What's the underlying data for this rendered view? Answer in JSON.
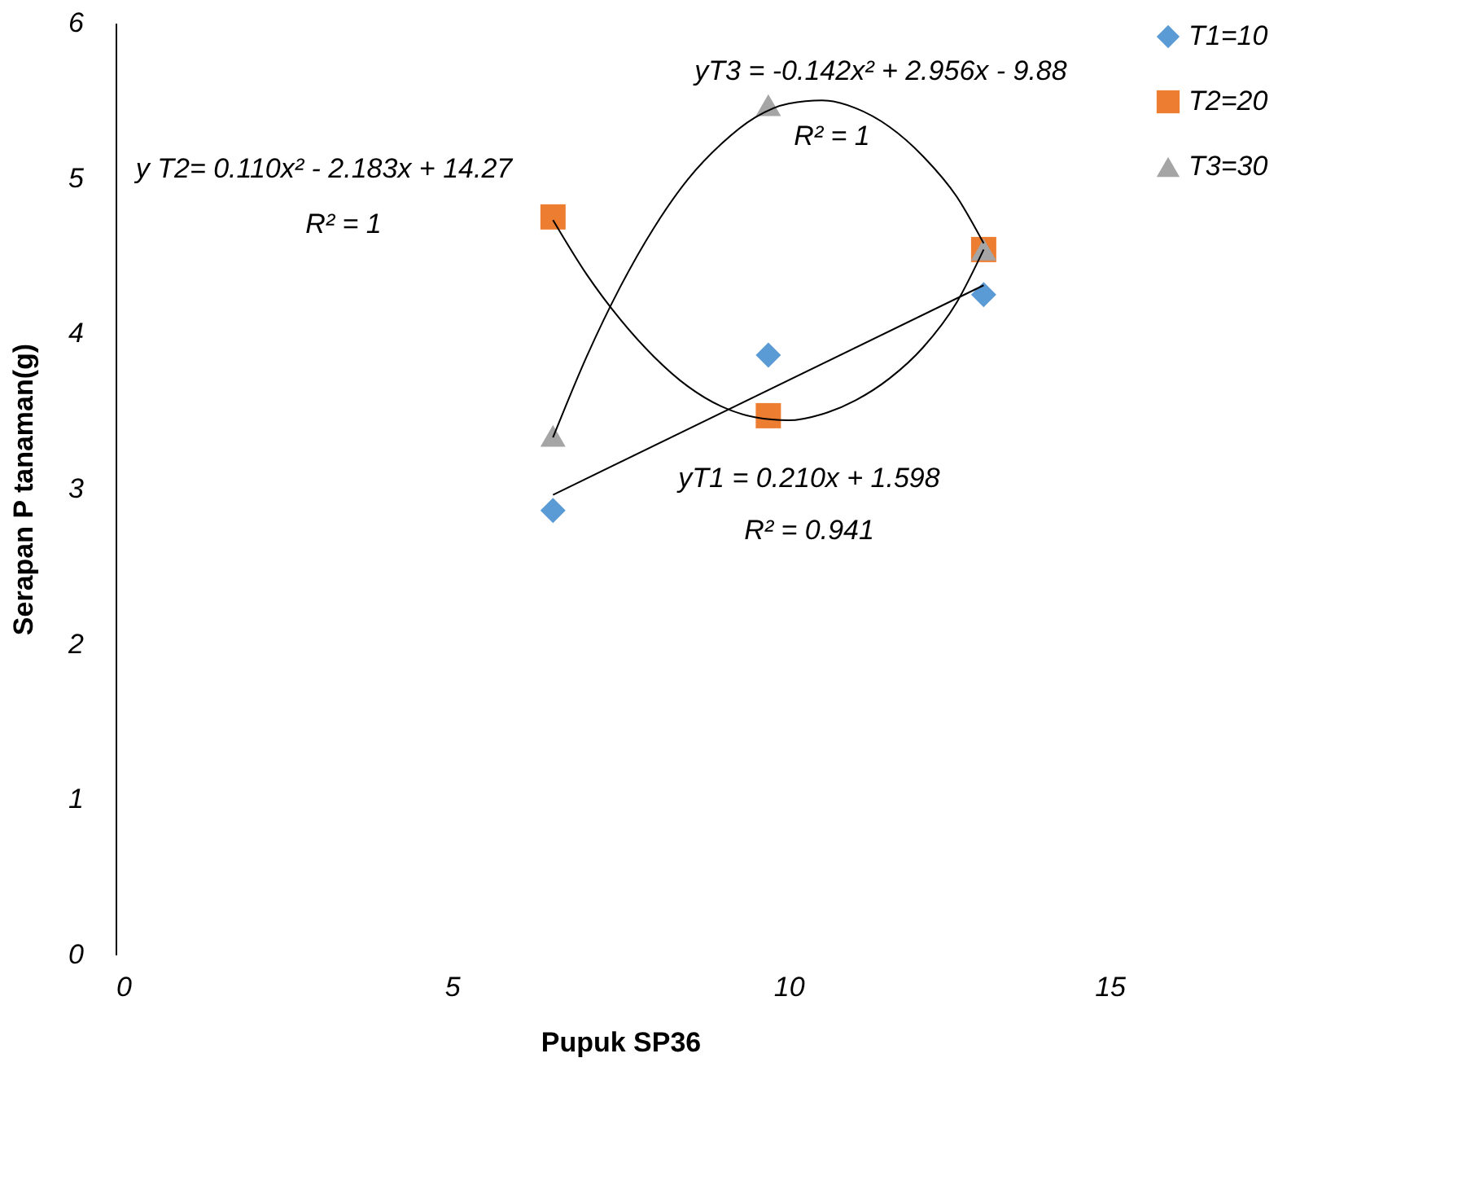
{
  "chart_data": {
    "type": "scatter",
    "xlabel": "Pupuk SP36",
    "ylabel": "Serapan P tanaman(g)",
    "xlim": [
      0,
      15
    ],
    "ylim": [
      0,
      6
    ],
    "xticks": [
      0,
      5,
      10,
      15
    ],
    "yticks": [
      0,
      1,
      2,
      3,
      4,
      5,
      6
    ],
    "grid": false,
    "legend": "right",
    "series": [
      {
        "name": "T1=10",
        "color": "#5b9bd5",
        "marker": "diamond",
        "x": [
          6.5,
          9.7,
          12.9
        ],
        "values": [
          2.86,
          3.86,
          4.25
        ]
      },
      {
        "name": "T2=20",
        "color": "#ed7d31",
        "marker": "square",
        "x": [
          6.5,
          9.7,
          12.9
        ],
        "values": [
          4.75,
          3.47,
          4.54
        ]
      },
      {
        "name": "T3=30",
        "color": "#a5a5a5",
        "marker": "triangle",
        "x": [
          6.5,
          9.7,
          12.9
        ],
        "values": [
          3.34,
          5.47,
          4.54
        ]
      },
      {
        "type": "line",
        "color": "#000000",
        "line_style": "solid",
        "x": [
          6.5,
          12.9
        ],
        "values": [
          2.96,
          4.31
        ]
      },
      {
        "type": "line",
        "color": "#000000",
        "line_style": "solid",
        "x": [
          6.5,
          7,
          7.5,
          8,
          8.5,
          9,
          9.5,
          10,
          10.5,
          11,
          11.5,
          12,
          12.5,
          12.9
        ],
        "values": [
          4.73,
          4.38,
          4.09,
          3.85,
          3.66,
          3.53,
          3.46,
          3.44,
          3.48,
          3.57,
          3.71,
          3.91,
          4.2,
          4.54
        ]
      },
      {
        "type": "line",
        "color": "#000000",
        "line_style": "solid",
        "x": [
          6.5,
          7,
          7.5,
          8,
          8.5,
          9,
          9.5,
          10,
          10.5,
          11,
          11.5,
          12,
          12.5,
          12.9
        ],
        "values": [
          3.33,
          3.85,
          4.3,
          4.68,
          4.99,
          5.22,
          5.39,
          5.48,
          5.5,
          5.45,
          5.33,
          5.14,
          4.88,
          4.58
        ]
      }
    ],
    "annotations": [
      "yT3 = -0.142x² + 2.956x - 9.88",
      "R² = 1",
      "y T2= 0.110x² - 2.183x + 14.27",
      "R² = 1",
      "yT1 = 0.210x + 1.598",
      "R² = 0.941"
    ]
  }
}
